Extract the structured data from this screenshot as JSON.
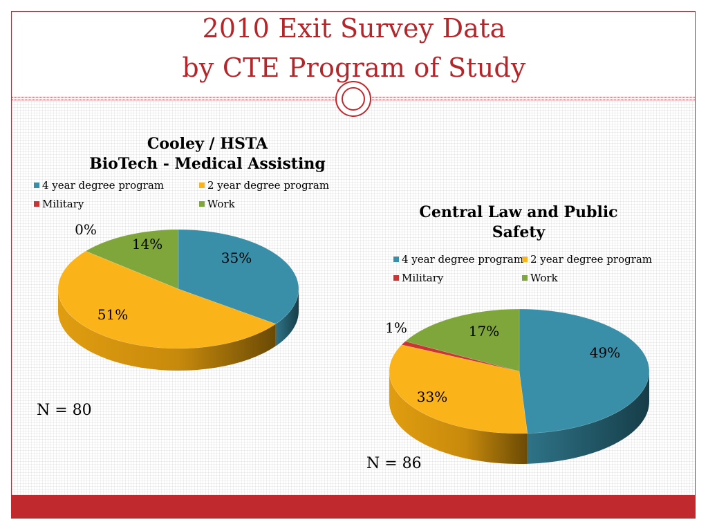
{
  "slide": {
    "title_line1": "2010 Exit Survey Data",
    "title_line2": "by CTE Program of Study",
    "accent_color": "#c0282d",
    "title_color": "#b5262b"
  },
  "chart_data": [
    {
      "type": "pie",
      "title_line1": "Cooley / HSTA",
      "title_line2": "BioTech - Medical Assisting",
      "legend_placement": "top",
      "categories": [
        "4 year degree program",
        "2 year degree program",
        "Military",
        "Work"
      ],
      "values": [
        35,
        51,
        0,
        14
      ],
      "labels": [
        "35%",
        "51%",
        "0%",
        "14%"
      ],
      "colors": [
        "#3a8fa8",
        "#fbb31a",
        "#cc3333",
        "#7fa63a"
      ],
      "n_label": "N = 80"
    },
    {
      "type": "pie",
      "title_line1": "Central Law and Public",
      "title_line2": "Safety",
      "legend_placement": "top",
      "categories": [
        "4 year degree program",
        "2 year degree program",
        "Military",
        "Work"
      ],
      "values": [
        49,
        33,
        1,
        17
      ],
      "labels": [
        "49%",
        "33%",
        "1%",
        "17%"
      ],
      "colors": [
        "#3a8fa8",
        "#fbb31a",
        "#cc3333",
        "#7fa63a"
      ],
      "n_label": "N = 86"
    }
  ]
}
